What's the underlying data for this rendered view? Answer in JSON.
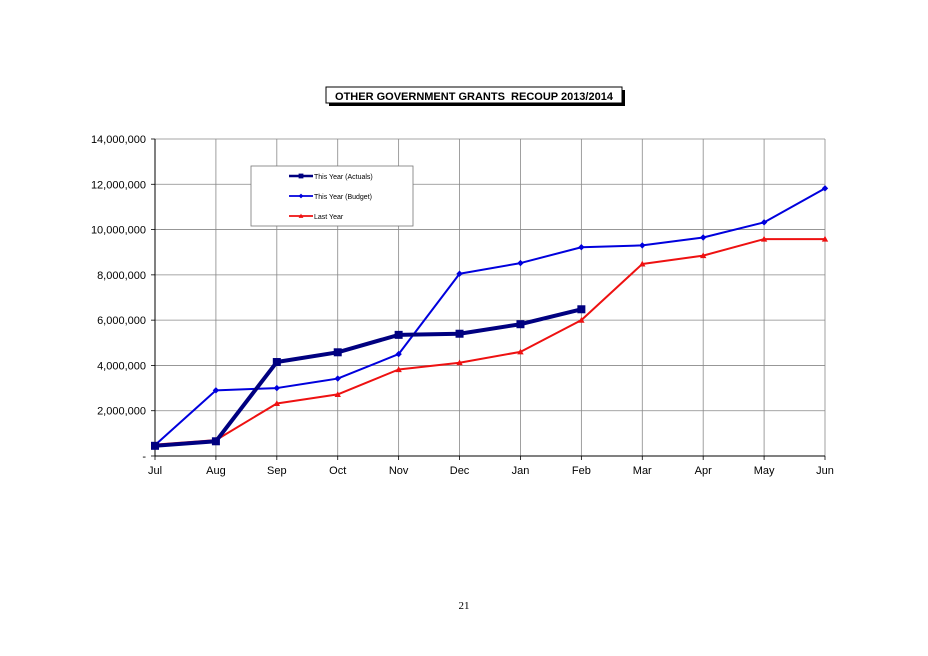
{
  "page": {
    "number": "21"
  },
  "chart_data": {
    "type": "line",
    "title": "OTHER GOVERNMENT GRANTS  RECOUP 2013/2014",
    "xlabel": "",
    "ylabel": "",
    "categories": [
      "Jul",
      "Aug",
      "Sep",
      "Oct",
      "Nov",
      "Dec",
      "Jan",
      "Feb",
      "Mar",
      "Apr",
      "May",
      "Jun"
    ],
    "ylim": [
      0,
      14000000
    ],
    "yticks": [
      0,
      2000000,
      4000000,
      6000000,
      8000000,
      10000000,
      12000000,
      14000000
    ],
    "ytick_labels": [
      "-",
      "2,000,000",
      "4,000,000",
      "6,000,000",
      "8,000,000",
      "10,000,000",
      "12,000,000",
      "14,000,000"
    ],
    "grid": true,
    "legend_position": "top-left",
    "series": [
      {
        "name": "This Year (Actuals)",
        "color": "#000080",
        "marker": "square",
        "values": [
          450000,
          650000,
          4150000,
          4580000,
          5350000,
          5400000,
          5820000,
          6480000,
          null,
          null,
          null,
          null
        ]
      },
      {
        "name": "This Year (Budget)",
        "color": "#0000dd",
        "marker": "diamond",
        "values": [
          480000,
          2900000,
          3000000,
          3420000,
          4500000,
          8050000,
          8520000,
          9220000,
          9300000,
          9650000,
          10320000,
          11820000
        ]
      },
      {
        "name": "Last Year",
        "color": "#ee1111",
        "marker": "triangle",
        "values": [
          500000,
          700000,
          2320000,
          2720000,
          3820000,
          4120000,
          4600000,
          6000000,
          8480000,
          8850000,
          9580000,
          9580000
        ]
      }
    ]
  }
}
